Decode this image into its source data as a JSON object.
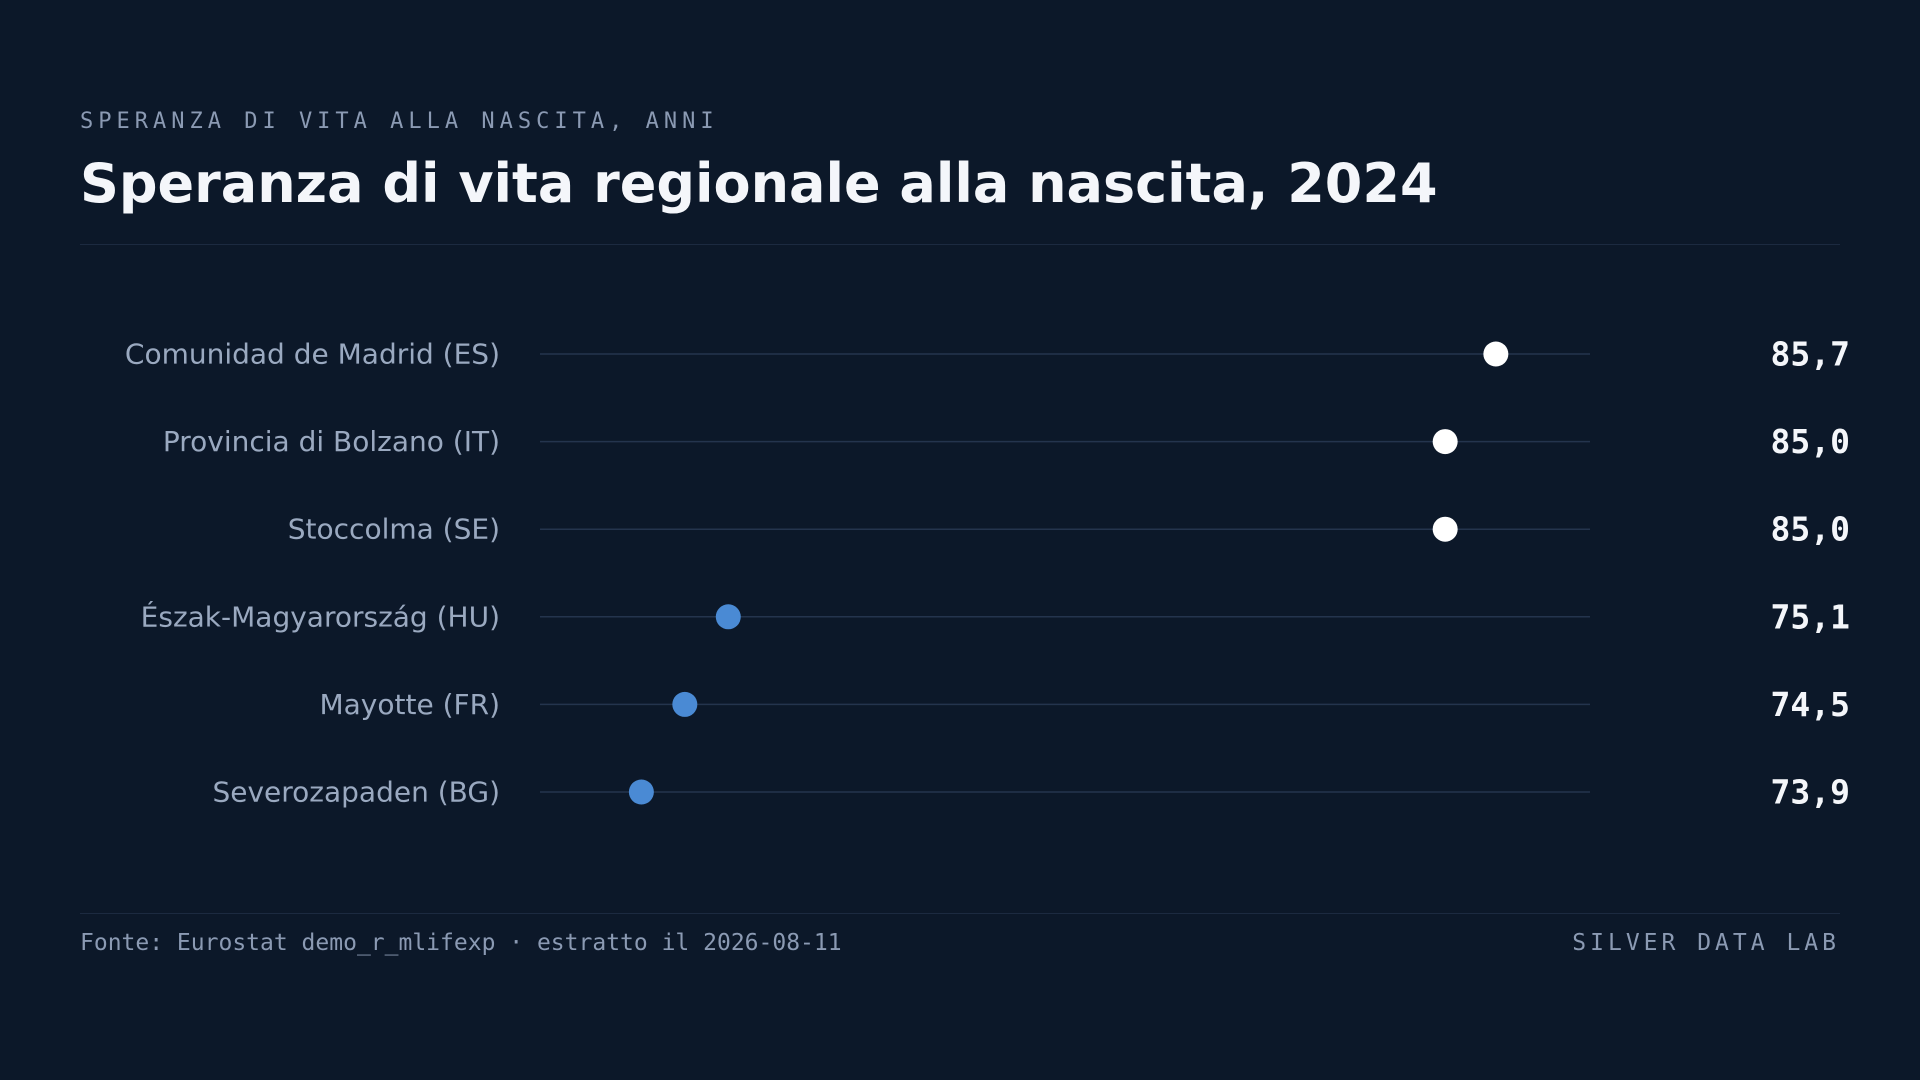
{
  "header": {
    "eyebrow": "SPERANZA DI VITA ALLA NASCITA, ANNI",
    "title": "Speranza di vita regionale alla nascita, 2024"
  },
  "footer": {
    "source": "Fonte: Eurostat demo_r_mlifexp · estratto il 2026-08-11",
    "brand": "SILVER DATA LAB"
  },
  "colors": {
    "background": "#0c1829",
    "high_dot": "#ffffff",
    "low_dot": "#4a8ad4",
    "track": "#24344d"
  },
  "chart_data": {
    "type": "dot",
    "title": "Speranza di vita regionale alla nascita, 2024",
    "ylabel": "",
    "xlabel": "",
    "xlim": [
      72.5,
      87.0
    ],
    "grid": false,
    "categories": [
      "Comunidad de Madrid (ES)",
      "Provincia di Bolzano (IT)",
      "Stoccolma (SE)",
      "Észak-Magyarország (HU)",
      "Mayotte (FR)",
      "Severozapaden (BG)"
    ],
    "values": [
      85.7,
      85.0,
      85.0,
      75.1,
      74.5,
      73.9
    ],
    "value_labels": [
      "85,7",
      "85,0",
      "85,0",
      "75,1",
      "74,5",
      "73,9"
    ],
    "highlight": [
      "high",
      "high",
      "high",
      "low",
      "low",
      "low"
    ]
  }
}
